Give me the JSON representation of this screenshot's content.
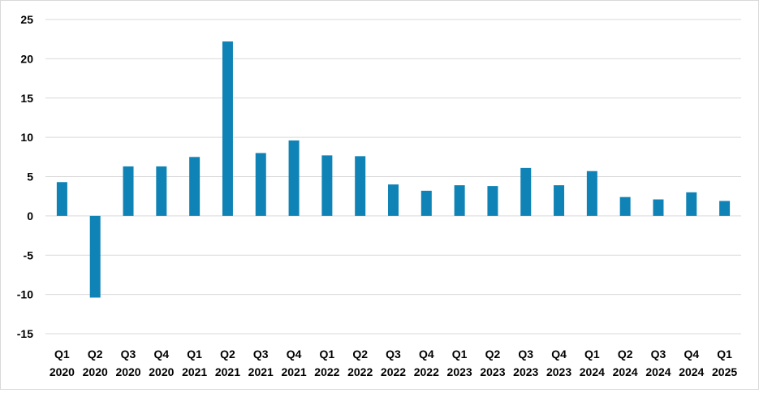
{
  "chart_data": {
    "type": "bar",
    "title": "",
    "xlabel": "",
    "ylabel": "",
    "ylim": [
      -15,
      25
    ],
    "yticks": [
      25,
      20,
      15,
      10,
      5,
      0,
      -5,
      -10,
      -15
    ],
    "grid": true,
    "legend": "none",
    "bar_color": "#0F83B5",
    "grid_color": "#d9d9d9",
    "categories": [
      [
        "Q1",
        "2020"
      ],
      [
        "Q2",
        "2020"
      ],
      [
        "Q3",
        "2020"
      ],
      [
        "Q4",
        "2020"
      ],
      [
        "Q1",
        "2021"
      ],
      [
        "Q2",
        "2021"
      ],
      [
        "Q3",
        "2021"
      ],
      [
        "Q4",
        "2021"
      ],
      [
        "Q1",
        "2022"
      ],
      [
        "Q2",
        "2022"
      ],
      [
        "Q3",
        "2022"
      ],
      [
        "Q4",
        "2022"
      ],
      [
        "Q1",
        "2023"
      ],
      [
        "Q2",
        "2023"
      ],
      [
        "Q3",
        "2023"
      ],
      [
        "Q4",
        "2023"
      ],
      [
        "Q1",
        "2024"
      ],
      [
        "Q2",
        "2024"
      ],
      [
        "Q3",
        "2024"
      ],
      [
        "Q4",
        "2024"
      ],
      [
        "Q1",
        "2025"
      ]
    ],
    "values": [
      4.3,
      -10.4,
      6.3,
      6.3,
      7.5,
      22.2,
      8.0,
      9.6,
      7.7,
      7.6,
      4.0,
      3.2,
      3.9,
      3.8,
      6.1,
      3.9,
      5.7,
      2.4,
      2.1,
      3.0,
      1.9
    ]
  }
}
